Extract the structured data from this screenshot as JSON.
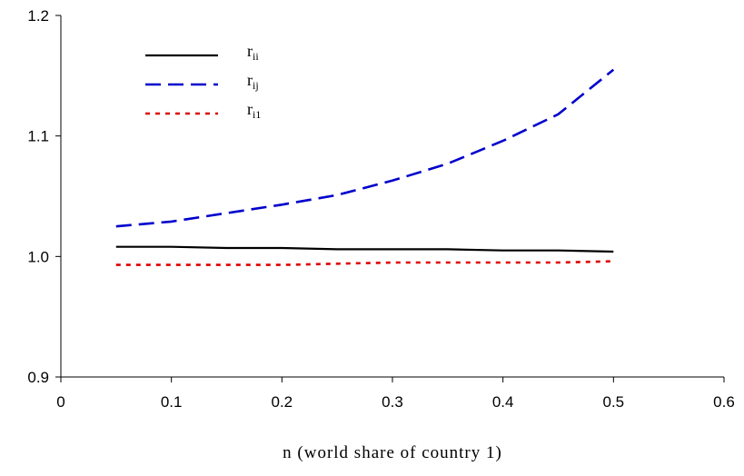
{
  "chart_data": {
    "type": "line",
    "title": "",
    "xlabel": "n (world share of country 1)",
    "ylabel": "",
    "xlim": [
      0,
      0.6
    ],
    "ylim": [
      0.9,
      1.2
    ],
    "xticks": [
      "0",
      "0.1",
      "0.2",
      "0.3",
      "0.4",
      "0.5",
      "0.6"
    ],
    "yticks": [
      "0.9",
      "1.0",
      "1.1",
      "1.2"
    ],
    "grid": false,
    "legend_position": "top-left",
    "x": [
      0.05,
      0.1,
      0.15,
      0.2,
      0.25,
      0.3,
      0.35,
      0.4,
      0.45,
      0.5
    ],
    "series": [
      {
        "name": "r",
        "subscript": "ii",
        "style": "solid",
        "color": "#000000",
        "values": [
          1.008,
          1.008,
          1.007,
          1.007,
          1.006,
          1.006,
          1.006,
          1.005,
          1.005,
          1.004
        ]
      },
      {
        "name": "r",
        "subscript": "ij",
        "style": "dashed",
        "color": "#0000cc",
        "values": [
          1.025,
          1.029,
          1.036,
          1.043,
          1.051,
          1.063,
          1.077,
          1.096,
          1.118,
          1.155
        ]
      },
      {
        "name": "r",
        "subscript": "i1",
        "style": "dotted",
        "color": "#dd0000",
        "values": [
          0.993,
          0.993,
          0.993,
          0.993,
          0.994,
          0.995,
          0.995,
          0.995,
          0.995,
          0.996
        ]
      }
    ]
  }
}
